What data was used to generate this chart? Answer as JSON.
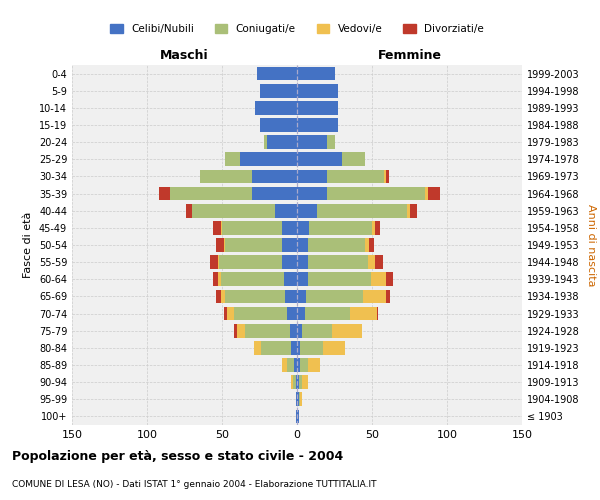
{
  "age_groups": [
    "100+",
    "95-99",
    "90-94",
    "85-89",
    "80-84",
    "75-79",
    "70-74",
    "65-69",
    "60-64",
    "55-59",
    "50-54",
    "45-49",
    "40-44",
    "35-39",
    "30-34",
    "25-29",
    "20-24",
    "15-19",
    "10-14",
    "5-9",
    "0-4"
  ],
  "birth_years": [
    "≤ 1903",
    "1904-1908",
    "1909-1913",
    "1914-1918",
    "1919-1923",
    "1924-1928",
    "1929-1933",
    "1934-1938",
    "1939-1943",
    "1944-1948",
    "1949-1953",
    "1954-1958",
    "1959-1963",
    "1964-1968",
    "1969-1973",
    "1974-1978",
    "1979-1983",
    "1984-1988",
    "1989-1993",
    "1994-1998",
    "1999-2003"
  ],
  "male": {
    "celibi": [
      1,
      1,
      1,
      2,
      4,
      5,
      7,
      8,
      9,
      10,
      10,
      10,
      15,
      30,
      30,
      38,
      20,
      25,
      28,
      25,
      27
    ],
    "coniugati": [
      0,
      0,
      2,
      5,
      20,
      30,
      35,
      40,
      42,
      42,
      38,
      40,
      55,
      55,
      35,
      10,
      2,
      0,
      0,
      0,
      0
    ],
    "vedovi": [
      0,
      0,
      1,
      3,
      5,
      5,
      5,
      3,
      2,
      1,
      1,
      1,
      0,
      0,
      0,
      0,
      0,
      0,
      0,
      0,
      0
    ],
    "divorziati": [
      0,
      0,
      0,
      0,
      0,
      2,
      2,
      3,
      3,
      5,
      5,
      5,
      4,
      7,
      0,
      0,
      0,
      0,
      0,
      0,
      0
    ]
  },
  "female": {
    "nubili": [
      1,
      1,
      1,
      2,
      2,
      3,
      5,
      6,
      7,
      7,
      7,
      8,
      13,
      20,
      20,
      30,
      20,
      27,
      27,
      27,
      25
    ],
    "coniugate": [
      0,
      1,
      2,
      5,
      15,
      20,
      30,
      38,
      42,
      40,
      38,
      42,
      60,
      65,
      38,
      15,
      5,
      0,
      0,
      0,
      0
    ],
    "vedove": [
      0,
      1,
      4,
      8,
      15,
      20,
      18,
      15,
      10,
      5,
      3,
      2,
      2,
      2,
      1,
      0,
      0,
      0,
      0,
      0,
      0
    ],
    "divorziate": [
      0,
      0,
      0,
      0,
      0,
      0,
      1,
      3,
      5,
      5,
      3,
      3,
      5,
      8,
      2,
      0,
      0,
      0,
      0,
      0,
      0
    ]
  },
  "colors": {
    "celibi": "#4472C4",
    "coniugati": "#AABF78",
    "vedovi": "#F0C050",
    "divorziati": "#C0392B"
  },
  "xlim": 150,
  "title": "Popolazione per età, sesso e stato civile - 2004",
  "subtitle": "COMUNE DI LESA (NO) - Dati ISTAT 1° gennaio 2004 - Elaborazione TUTTITALIA.IT",
  "xlabel_left": "Maschi",
  "xlabel_right": "Femmine",
  "ylabel_left": "Fasce di età",
  "ylabel_right": "Anni di nascita",
  "background_color": "#ffffff",
  "plot_bg_color": "#f0f0f0",
  "grid_color": "#cccccc"
}
